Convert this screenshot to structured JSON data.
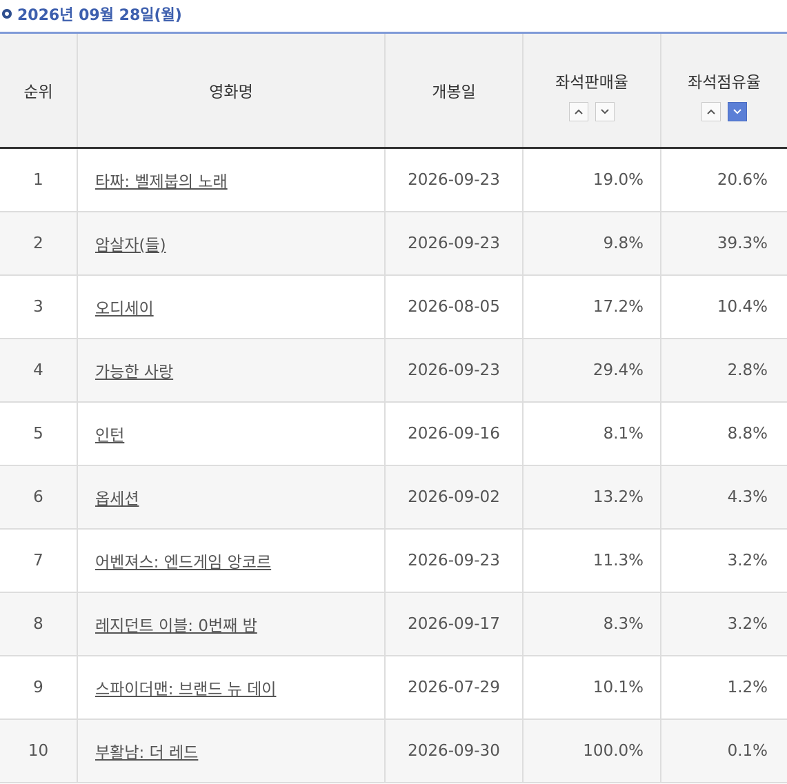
{
  "header": {
    "title": "2026년 09월 28일(월)"
  },
  "table": {
    "columns": [
      "순위",
      "영화명",
      "개봉일",
      "좌석판매율",
      "좌석점유율"
    ],
    "rows": [
      [
        "1",
        "타짜: 벨제붑의 노래",
        "2026-09-23",
        "19.0%",
        "20.6%"
      ],
      [
        "2",
        "암살자(들)",
        "2026-09-23",
        "9.8%",
        "39.3%"
      ],
      [
        "3",
        "오디세이",
        "2026-08-05",
        "17.2%",
        "10.4%"
      ],
      [
        "4",
        "가능한 사랑",
        "2026-09-23",
        "29.4%",
        "2.8%"
      ],
      [
        "5",
        "인턴",
        "2026-09-16",
        "8.1%",
        "8.8%"
      ],
      [
        "6",
        "옵세션",
        "2026-09-02",
        "13.2%",
        "4.3%"
      ],
      [
        "7",
        "어벤져스: 엔드게임 앙코르",
        "2026-09-23",
        "11.3%",
        "3.2%"
      ],
      [
        "8",
        "레지던트 이블: 0번째 밤",
        "2026-09-17",
        "8.3%",
        "3.2%"
      ],
      [
        "9",
        "스파이더맨: 브랜드 뉴 데이",
        "2026-07-29",
        "10.1%",
        "1.2%"
      ],
      [
        "10",
        "부활남: 더 레드",
        "2026-09-30",
        "100.0%",
        "0.1%"
      ]
    ]
  }
}
